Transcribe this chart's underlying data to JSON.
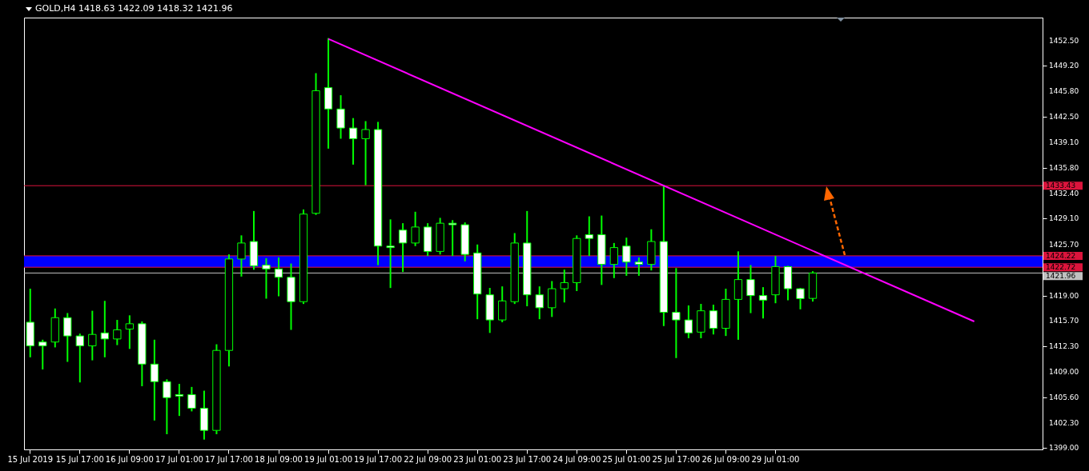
{
  "chart_data": {
    "type": "candlestick",
    "title": "GOLD,H4 1418.63 1422.09 1418.32 1421.96",
    "categories": [
      "15 Jul 2019",
      null,
      null,
      null,
      "15 Jul 17:00",
      null,
      null,
      null,
      "16 Jul 09:00",
      null,
      null,
      null,
      "17 Jul 01:00",
      null,
      null,
      null,
      "17 Jul 17:00",
      null,
      null,
      null,
      "18 Jul 09:00",
      null,
      null,
      null,
      "19 Jul 01:00",
      null,
      null,
      null,
      "19 Jul 17:00",
      null,
      null,
      null,
      "22 Jul 09:00",
      null,
      null,
      null,
      "23 Jul 01:00",
      null,
      null,
      null,
      "23 Jul 17:00",
      null,
      null,
      null,
      "24 Jul 09:00",
      null,
      null,
      null,
      "25 Jul 01:00",
      null,
      null,
      null,
      "25 Jul 17:00",
      null,
      null,
      null,
      "26 Jul 09:00",
      null,
      null,
      null,
      "29 Jul 01:00",
      null,
      null,
      null,
      null,
      null,
      null,
      null,
      null,
      null,
      null,
      null,
      null,
      null,
      null,
      null,
      null,
      null,
      null,
      null,
      null,
      null
    ],
    "series": [
      {
        "type": "candlestick",
        "color": "#00ff00",
        "ohlc": [
          [
            1415.5,
            1419.8,
            1411.0,
            1412.4
          ],
          [
            1412.9,
            1413.1,
            1409.4,
            1412.4
          ],
          [
            1412.9,
            1417.2,
            1412.3,
            1416.1
          ],
          [
            1416.1,
            1416.6,
            1410.4,
            1413.7
          ],
          [
            1413.7,
            1413.9,
            1407.7,
            1412.4
          ],
          [
            1412.4,
            1416.9,
            1410.6,
            1413.9
          ],
          [
            1414.1,
            1418.2,
            1411.0,
            1413.3
          ],
          [
            1413.3,
            1415.7,
            1412.6,
            1414.5
          ],
          [
            1414.6,
            1416.3,
            1412.1,
            1415.3
          ],
          [
            1415.3,
            1415.5,
            1407.2,
            1410.0
          ],
          [
            1410.0,
            1413.1,
            1402.7,
            1407.7
          ],
          [
            1407.7,
            1407.9,
            1400.9,
            1405.6
          ],
          [
            1406.0,
            1407.3,
            1403.3,
            1405.8
          ],
          [
            1406.0,
            1406.9,
            1403.9,
            1404.2
          ],
          [
            1404.2,
            1406.4,
            1400.2,
            1401.3
          ],
          [
            1401.3,
            1412.5,
            1400.9,
            1411.8
          ],
          [
            1411.8,
            1424.3,
            1409.8,
            1423.8
          ],
          [
            1423.8,
            1426.8,
            1421.6,
            1425.9
          ],
          [
            1426.1,
            1430.0,
            1422.5,
            1422.9
          ],
          [
            1423.0,
            1423.8,
            1418.7,
            1422.5
          ],
          [
            1422.5,
            1423.9,
            1419.0,
            1421.4
          ],
          [
            1421.4,
            1423.1,
            1414.6,
            1418.2
          ],
          [
            1418.2,
            1430.2,
            1418.0,
            1429.7
          ],
          [
            1429.8,
            1448.1,
            1429.7,
            1445.9
          ],
          [
            1446.3,
            1452.7,
            1438.4,
            1443.5
          ],
          [
            1443.5,
            1445.2,
            1439.7,
            1441.0
          ],
          [
            1441.0,
            1442.2,
            1436.3,
            1439.6
          ],
          [
            1439.6,
            1441.8,
            1433.6,
            1440.8
          ],
          [
            1440.8,
            1441.7,
            1423.1,
            1425.5
          ],
          [
            1425.5,
            1428.9,
            1420.1,
            1425.3
          ],
          [
            1427.6,
            1428.4,
            1422.2,
            1425.9
          ],
          [
            1425.9,
            1429.9,
            1425.6,
            1428.0
          ],
          [
            1428.0,
            1428.4,
            1424.3,
            1424.8
          ],
          [
            1424.8,
            1429.1,
            1424.5,
            1428.5
          ],
          [
            1428.5,
            1428.8,
            1424.3,
            1428.3
          ],
          [
            1428.3,
            1428.5,
            1423.6,
            1424.4
          ],
          [
            1424.6,
            1425.6,
            1416.0,
            1419.2
          ],
          [
            1419.1,
            1419.9,
            1414.2,
            1415.8
          ],
          [
            1415.8,
            1420.1,
            1415.6,
            1418.3
          ],
          [
            1418.2,
            1427.1,
            1418.0,
            1425.9
          ],
          [
            1425.9,
            1430.0,
            1417.7,
            1419.1
          ],
          [
            1419.1,
            1420.1,
            1416.0,
            1417.4
          ],
          [
            1417.4,
            1420.8,
            1416.3,
            1419.9
          ],
          [
            1419.9,
            1422.3,
            1418.2,
            1420.7
          ],
          [
            1420.7,
            1426.8,
            1419.7,
            1426.5
          ],
          [
            1427.0,
            1429.3,
            1424.3,
            1426.5
          ],
          [
            1427.0,
            1429.4,
            1420.5,
            1423.1
          ],
          [
            1423.1,
            1425.8,
            1421.4,
            1425.3
          ],
          [
            1425.5,
            1426.5,
            1421.7,
            1423.4
          ],
          [
            1423.4,
            1423.9,
            1421.7,
            1423.1
          ],
          [
            1423.1,
            1427.6,
            1422.4,
            1426.1
          ],
          [
            1426.1,
            1433.4,
            1415.1,
            1416.8
          ],
          [
            1416.8,
            1422.5,
            1410.9,
            1415.8
          ],
          [
            1415.8,
            1417.6,
            1413.5,
            1414.1
          ],
          [
            1414.2,
            1417.8,
            1413.5,
            1417.0
          ],
          [
            1417.0,
            1417.7,
            1414.0,
            1414.7
          ],
          [
            1414.7,
            1419.8,
            1413.8,
            1418.5
          ],
          [
            1418.5,
            1424.7,
            1413.3,
            1421.1
          ],
          [
            1421.1,
            1422.9,
            1416.8,
            1419.0
          ],
          [
            1419.0,
            1420.0,
            1416.1,
            1418.4
          ],
          [
            1419.1,
            1424.1,
            1418.1,
            1422.8
          ],
          [
            1422.8,
            1422.8,
            1418.5,
            1419.9
          ],
          [
            1419.9,
            1419.9,
            1417.3,
            1418.6
          ],
          [
            1418.63,
            1422.09,
            1418.32,
            1421.96
          ],
          null,
          null,
          null,
          null,
          null,
          null,
          null,
          null,
          null,
          null,
          null,
          null,
          null,
          null,
          null,
          null,
          null,
          null
        ]
      },
      {
        "type": "line",
        "color": "#ff00ff",
        "values": [
          null,
          null,
          null,
          null,
          null,
          null,
          null,
          null,
          null,
          null,
          null,
          null,
          null,
          null,
          null,
          null,
          null,
          null,
          null,
          null,
          null,
          null,
          null,
          null,
          1452.7,
          null,
          null,
          null,
          null,
          null,
          null,
          null,
          null,
          null,
          null,
          null,
          null,
          null,
          null,
          null,
          null,
          null,
          null,
          null,
          null,
          null,
          null,
          null,
          null,
          null,
          null,
          null,
          null,
          null,
          null,
          null,
          null,
          null,
          null,
          null,
          null,
          null,
          null,
          null,
          null,
          null,
          null,
          null,
          null,
          null,
          null,
          null,
          null,
          null,
          null,
          null,
          1415.6,
          null,
          null,
          null,
          null,
          null
        ]
      }
    ],
    "ylim": [
      1398.8,
      1455.5
    ],
    "yticks": [
      {
        "value": 1399,
        "label": "1399.00"
      },
      {
        "value": 1402.3,
        "label": "1402.30"
      },
      {
        "value": 1405.6,
        "label": "1405.60"
      },
      {
        "value": 1409,
        "label": "1409.00"
      },
      {
        "value": 1412.3,
        "label": "1412.30"
      },
      {
        "value": 1415.7,
        "label": "1415.70"
      },
      {
        "value": 1419,
        "label": "1419.00"
      },
      {
        "value": 1425.7,
        "label": "1425.70"
      },
      {
        "value": 1429.1,
        "label": "1429.10"
      },
      {
        "value": 1432.4,
        "label": "1432.40"
      },
      {
        "value": 1435.8,
        "label": "1435.80"
      },
      {
        "value": 1439.1,
        "label": "1439.10"
      },
      {
        "value": 1442.5,
        "label": "1442.50"
      },
      {
        "value": 1445.8,
        "label": "1445.80"
      },
      {
        "value": 1449.2,
        "label": "1449.20"
      },
      {
        "value": 1452.5,
        "label": "1452.50"
      }
    ],
    "ref_lines": [
      {
        "axis": "y",
        "value": 1433.43,
        "label": "1433.43",
        "color": "#dc143c"
      },
      {
        "axis": "y",
        "value": 1424.22,
        "label": "1424.22",
        "color": "#dc143c"
      },
      {
        "axis": "y",
        "value": 1422.72,
        "label": "1422.72",
        "color": "#dc143c"
      },
      {
        "axis": "y",
        "value": 1421.96,
        "label": "1421.96",
        "color": "#c0c0c0"
      }
    ],
    "bands": [
      {
        "axis": "y",
        "from": 1422.72,
        "to": 1424.22,
        "color": "#0000ff"
      }
    ],
    "grid": false
  }
}
